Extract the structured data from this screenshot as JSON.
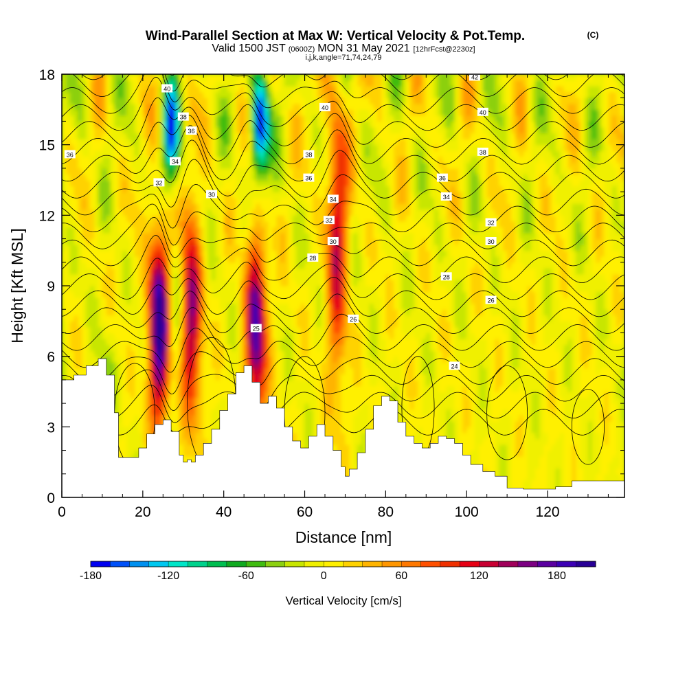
{
  "header": {
    "title": "Wind-Parallel Section at Max W: Vertical Velocity & Pot.Temp.",
    "copyright": "(C)",
    "valid_prefix": "Valid 1500 JST",
    "valid_utc": "(0600Z)",
    "valid_date": "MON 31 May 2021",
    "forecast": "[12hrFcst@2230z]",
    "indices": "i,j,k,angle=71,74,24,79"
  },
  "chart_data": {
    "type": "heatmap",
    "xlabel": "Distance [nm]",
    "ylabel": "Height [Kft MSL]",
    "xlim": [
      0,
      139
    ],
    "ylim": [
      0,
      18
    ],
    "x_ticks": [
      0,
      20,
      40,
      60,
      80,
      100,
      120
    ],
    "y_ticks": [
      0,
      3,
      6,
      9,
      12,
      15,
      18
    ],
    "colorbar": {
      "label": "Vertical Velocity [cm/s]",
      "min": -180,
      "max": 210,
      "step": 15,
      "tick_values": [
        -180,
        -120,
        -60,
        0,
        60,
        120,
        180
      ],
      "colors": [
        "#0000f0",
        "#0050f8",
        "#0090f0",
        "#00c8f0",
        "#00e6c8",
        "#00d28c",
        "#00be50",
        "#10aa20",
        "#40bc10",
        "#8cd010",
        "#c8e600",
        "#f0f000",
        "#fff000",
        "#ffd200",
        "#ffb400",
        "#ff9600",
        "#ff7800",
        "#ff5000",
        "#f03000",
        "#e60014",
        "#c80032",
        "#a0005a",
        "#7c0082",
        "#5a00a0",
        "#3c00b4",
        "#280096"
      ]
    },
    "updraft_cores": [
      {
        "x": 24,
        "z_top": 11.8,
        "peak_cm_s": 210
      },
      {
        "x": 32,
        "z_top": 12.5,
        "peak_cm_s": 150
      },
      {
        "x": 48,
        "z_top": 11.5,
        "peak_cm_s": 180
      },
      {
        "x": 68,
        "z_top": 18.0,
        "peak_cm_s": 120
      }
    ],
    "downdraft_cores": [
      {
        "x": 27,
        "z_center": 15.5,
        "peak_cm_s": -140
      },
      {
        "x": 49,
        "z_center": 15.8,
        "peak_cm_s": -180
      }
    ],
    "terrain_kft": [
      [
        0,
        5.0
      ],
      [
        3,
        5.2
      ],
      [
        6,
        5.6
      ],
      [
        9,
        5.9
      ],
      [
        11,
        5.2
      ],
      [
        13,
        3.6
      ],
      [
        14,
        1.7
      ],
      [
        17,
        1.7
      ],
      [
        19,
        2.1
      ],
      [
        21,
        2.7
      ],
      [
        23,
        3.1
      ],
      [
        25,
        3.3
      ],
      [
        27,
        2.8
      ],
      [
        29,
        1.8
      ],
      [
        30,
        1.5
      ],
      [
        31,
        1.6
      ],
      [
        32,
        1.5
      ],
      [
        33,
        1.8
      ],
      [
        35,
        2.3
      ],
      [
        37,
        2.9
      ],
      [
        39,
        3.7
      ],
      [
        41,
        4.4
      ],
      [
        43,
        5.3
      ],
      [
        45,
        5.6
      ],
      [
        47,
        4.9
      ],
      [
        49,
        4.0
      ],
      [
        51,
        4.3
      ],
      [
        53,
        3.8
      ],
      [
        55,
        3.0
      ],
      [
        57,
        2.4
      ],
      [
        59,
        2.1
      ],
      [
        61,
        2.6
      ],
      [
        63,
        3.1
      ],
      [
        65,
        2.6
      ],
      [
        67,
        2.0
      ],
      [
        69,
        1.3
      ],
      [
        70,
        0.9
      ],
      [
        71,
        1.2
      ],
      [
        73,
        1.9
      ],
      [
        75,
        2.9
      ],
      [
        77,
        3.9
      ],
      [
        79,
        4.3
      ],
      [
        81,
        4.1
      ],
      [
        83,
        3.2
      ],
      [
        85,
        2.6
      ],
      [
        87,
        2.3
      ],
      [
        89,
        2.1
      ],
      [
        91,
        2.3
      ],
      [
        93,
        2.6
      ],
      [
        95,
        2.5
      ],
      [
        97,
        2.3
      ],
      [
        99,
        1.8
      ],
      [
        101,
        1.4
      ],
      [
        104,
        1.1
      ],
      [
        107,
        0.9
      ],
      [
        110,
        0.4
      ],
      [
        114,
        0.35
      ],
      [
        118,
        0.35
      ],
      [
        122,
        0.45
      ],
      [
        126,
        0.7
      ],
      [
        139,
        0.7
      ]
    ],
    "theta_contours": [
      {
        "value": 24,
        "label": "24",
        "label_at": [
          97,
          5.6
        ]
      },
      {
        "value": 25,
        "label": "25",
        "label_at": [
          48,
          7.2
        ]
      },
      {
        "value": 26,
        "label": "26",
        "label_at": [
          72,
          7.6
        ]
      },
      {
        "value": 26,
        "label": "26",
        "label_at": [
          106,
          8.4
        ]
      },
      {
        "value": 28,
        "label": "28",
        "label_at": [
          62,
          10.2
        ]
      },
      {
        "value": 28,
        "label": "28",
        "label_at": [
          95,
          9.4
        ]
      },
      {
        "value": 30,
        "label": "30",
        "label_at": [
          37,
          12.9
        ]
      },
      {
        "value": 30,
        "label": "30",
        "label_at": [
          67,
          10.9
        ]
      },
      {
        "value": 30,
        "label": "30",
        "label_at": [
          106,
          10.9
        ]
      },
      {
        "value": 32,
        "label": "32",
        "label_at": [
          24,
          13.4
        ]
      },
      {
        "value": 32,
        "label": "32",
        "label_at": [
          66,
          11.8
        ]
      },
      {
        "value": 32,
        "label": "32",
        "label_at": [
          106,
          11.7
        ]
      },
      {
        "value": 34,
        "label": "34",
        "label_at": [
          28,
          14.3
        ]
      },
      {
        "value": 34,
        "label": "34",
        "label_at": [
          67,
          12.7
        ]
      },
      {
        "value": 34,
        "label": "34",
        "label_at": [
          95,
          12.8
        ]
      },
      {
        "value": 36,
        "label": "36",
        "label_at": [
          2,
          14.6
        ]
      },
      {
        "value": 36,
        "label": "36",
        "label_at": [
          61,
          13.6
        ]
      },
      {
        "value": 36,
        "label": "36",
        "label_at": [
          94,
          13.6
        ]
      },
      {
        "value": 36,
        "label": "36",
        "label_at": [
          32,
          15.6
        ]
      },
      {
        "value": 38,
        "label": "38",
        "label_at": [
          61,
          14.6
        ]
      },
      {
        "value": 38,
        "label": "38",
        "label_at": [
          104,
          14.7
        ]
      },
      {
        "value": 38,
        "label": "38",
        "label_at": [
          30,
          16.2
        ]
      },
      {
        "value": 40,
        "label": "40",
        "label_at": [
          26,
          17.4
        ]
      },
      {
        "value": 40,
        "label": "40",
        "label_at": [
          65,
          16.6
        ]
      },
      {
        "value": 40,
        "label": "40",
        "label_at": [
          104,
          16.4
        ]
      },
      {
        "value": 42,
        "label": "42",
        "label_at": [
          102,
          17.9
        ]
      }
    ]
  }
}
